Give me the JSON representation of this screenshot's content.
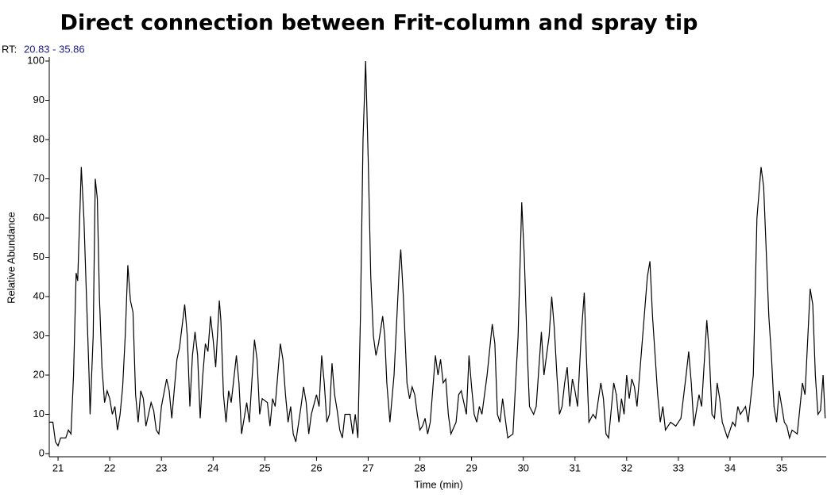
{
  "chart_data": {
    "type": "line",
    "title": "Direct connection between Frit-column and spray tip",
    "rt_label": "RT:",
    "rt_range": "20.83 - 35.86",
    "x_label": "Time (min)",
    "y_label": "Relative Abundance",
    "color": "#000000",
    "xlim": [
      20.83,
      35.86
    ],
    "ylim": [
      0,
      100
    ],
    "xticks": [
      21,
      22,
      23,
      24,
      25,
      26,
      27,
      28,
      29,
      30,
      31,
      32,
      33,
      34,
      35
    ],
    "yticks": [
      0,
      10,
      20,
      30,
      40,
      50,
      60,
      70,
      80,
      90,
      100
    ],
    "x": [
      20.83,
      20.9,
      20.95,
      21.0,
      21.05,
      21.15,
      21.2,
      21.25,
      21.3,
      21.35,
      21.38,
      21.45,
      21.5,
      21.55,
      21.6,
      21.62,
      21.68,
      21.72,
      21.76,
      21.8,
      21.85,
      21.9,
      21.95,
      22.0,
      22.05,
      22.1,
      22.15,
      22.2,
      22.25,
      22.3,
      22.35,
      22.4,
      22.45,
      22.5,
      22.55,
      22.6,
      22.65,
      22.7,
      22.8,
      22.85,
      22.9,
      22.95,
      23.0,
      23.1,
      23.15,
      23.2,
      23.3,
      23.35,
      23.45,
      23.5,
      23.55,
      23.6,
      23.65,
      23.7,
      23.75,
      23.8,
      23.85,
      23.9,
      23.95,
      24.0,
      24.05,
      24.12,
      24.15,
      24.2,
      24.25,
      24.3,
      24.35,
      24.45,
      24.5,
      24.55,
      24.65,
      24.7,
      24.8,
      24.85,
      24.9,
      24.95,
      25.05,
      25.1,
      25.15,
      25.2,
      25.3,
      25.35,
      25.4,
      25.45,
      25.5,
      25.55,
      25.6,
      25.7,
      25.75,
      25.8,
      25.85,
      25.9,
      26.0,
      26.05,
      26.1,
      26.15,
      26.2,
      26.25,
      26.3,
      26.35,
      26.4,
      26.45,
      26.5,
      26.55,
      26.65,
      26.7,
      26.75,
      26.8,
      26.85,
      26.9,
      26.95,
      27.0,
      27.05,
      27.1,
      27.15,
      27.2,
      27.28,
      27.32,
      27.36,
      27.42,
      27.5,
      27.6,
      27.63,
      27.68,
      27.75,
      27.8,
      27.85,
      27.9,
      27.95,
      28.0,
      28.05,
      28.1,
      28.15,
      28.2,
      28.3,
      28.35,
      28.4,
      28.45,
      28.5,
      28.55,
      28.6,
      28.7,
      28.75,
      28.8,
      28.9,
      28.95,
      29.0,
      29.05,
      29.1,
      29.15,
      29.2,
      29.3,
      29.4,
      29.45,
      29.5,
      29.55,
      29.6,
      29.65,
      29.7,
      29.8,
      29.9,
      29.97,
      30.02,
      30.08,
      30.12,
      30.2,
      30.25,
      30.35,
      30.4,
      30.45,
      30.5,
      30.55,
      30.6,
      30.65,
      30.7,
      30.75,
      30.8,
      30.85,
      30.9,
      30.95,
      31.0,
      31.05,
      31.12,
      31.18,
      31.22,
      31.27,
      31.35,
      31.4,
      31.5,
      31.55,
      31.6,
      31.65,
      31.75,
      31.8,
      31.85,
      31.9,
      31.95,
      32.0,
      32.05,
      32.1,
      32.15,
      32.2,
      32.25,
      32.4,
      32.45,
      32.5,
      32.6,
      32.65,
      32.7,
      32.75,
      32.85,
      32.95,
      33.05,
      33.15,
      33.2,
      33.25,
      33.3,
      33.4,
      33.45,
      33.55,
      33.6,
      33.65,
      33.7,
      33.75,
      33.8,
      33.85,
      33.95,
      34.05,
      34.1,
      34.15,
      34.2,
      34.3,
      34.35,
      34.45,
      34.52,
      34.6,
      34.65,
      34.75,
      34.8,
      34.85,
      34.9,
      34.95,
      35.0,
      35.05,
      35.1,
      35.15,
      35.2,
      35.3,
      35.4,
      35.45,
      35.55,
      35.6,
      35.65,
      35.7,
      35.75,
      35.8,
      35.84
    ],
    "values": [
      8,
      8,
      3,
      2,
      4,
      4,
      6,
      5,
      20,
      46,
      44,
      73,
      60,
      40,
      20,
      10,
      30,
      70,
      65,
      40,
      22,
      13,
      16,
      14,
      10,
      12,
      6,
      10,
      17,
      30,
      48,
      39,
      36,
      15,
      8,
      16,
      14,
      7,
      13,
      11,
      6,
      5,
      12,
      19,
      16,
      9,
      24,
      27,
      38,
      30,
      12,
      25,
      31,
      25,
      9,
      20,
      28,
      26,
      35,
      29,
      22,
      39,
      34,
      15,
      8,
      16,
      13,
      25,
      18,
      5,
      13,
      8,
      29,
      24,
      10,
      14,
      13,
      7,
      14,
      12,
      28,
      24,
      15,
      8,
      12,
      5,
      3,
      12,
      17,
      13,
      5,
      10,
      15,
      12,
      25,
      18,
      8,
      10,
      23,
      15,
      11,
      6,
      4,
      10,
      10,
      5,
      10,
      4,
      35,
      80,
      100,
      75,
      45,
      30,
      25,
      28,
      35,
      30,
      18,
      8,
      20,
      47,
      52,
      40,
      18,
      14,
      17,
      15,
      10,
      6,
      7,
      9,
      5,
      8,
      25,
      20,
      24,
      18,
      19,
      10,
      5,
      8,
      15,
      16,
      10,
      25,
      17,
      10,
      8,
      12,
      10,
      20,
      33,
      28,
      10,
      8,
      14,
      9,
      4,
      5,
      30,
      64,
      50,
      25,
      12,
      10,
      12,
      31,
      20,
      25,
      30,
      40,
      32,
      20,
      10,
      12,
      18,
      22,
      12,
      19,
      16,
      12,
      30,
      41,
      25,
      8,
      10,
      9,
      18,
      14,
      5,
      4,
      18,
      15,
      8,
      14,
      10,
      20,
      14,
      19,
      17,
      12,
      20,
      45,
      49,
      35,
      15,
      8,
      12,
      6,
      8,
      7,
      9,
      20,
      26,
      18,
      7,
      15,
      12,
      34,
      25,
      10,
      9,
      18,
      14,
      8,
      4,
      8,
      7,
      12,
      10,
      12,
      8,
      20,
      60,
      73,
      68,
      35,
      25,
      12,
      8,
      16,
      12,
      8,
      7,
      4,
      6,
      5,
      18,
      15,
      42,
      38,
      20,
      10,
      11,
      20,
      9
    ]
  }
}
